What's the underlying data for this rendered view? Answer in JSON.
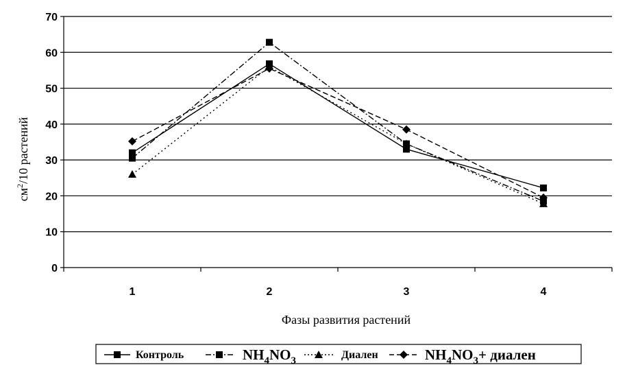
{
  "chart_data": {
    "type": "line",
    "x": [
      "1",
      "2",
      "3",
      "4"
    ],
    "xlabel": "Фазы развития растений",
    "ylabel": "см²/10 растений",
    "ylim": [
      0,
      70
    ],
    "yticks": [
      "0",
      "10",
      "20",
      "30",
      "40",
      "50",
      "60",
      "70"
    ],
    "grid": true,
    "legend_position": "bottom",
    "series": [
      {
        "name": "Контроль",
        "values": [
          32.0,
          56.8,
          33.0,
          22.2
        ],
        "marker": "square",
        "dash": "solid",
        "color": "#000000"
      },
      {
        "name": "NH4NO3",
        "values": [
          30.5,
          62.8,
          34.5,
          18.5
        ],
        "marker": "square",
        "dash": "dashdot",
        "color": "#000000"
      },
      {
        "name": "Диален",
        "values": [
          26.0,
          56.0,
          34.5,
          17.8
        ],
        "marker": "triangle",
        "dash": "dotted",
        "color": "#000000"
      },
      {
        "name": "NH4NO3+ диален",
        "values": [
          35.2,
          55.5,
          38.5,
          19.5
        ],
        "marker": "diamond",
        "dash": "dashed",
        "color": "#000000"
      }
    ],
    "legend_labels": {
      "s0": "Контроль",
      "s1_main": "NH",
      "s1_sub1": "4",
      "s1_mid": "NO",
      "s1_sub2": "3",
      "s2": "Диален",
      "s3_main": "NH",
      "s3_sub1": "4",
      "s3_mid": "NO",
      "s3_sub2": "3",
      "s3_tail": "+ диален"
    },
    "ylabel_parts": {
      "unit": "см",
      "exp": "2",
      "rest": "/10 растений"
    }
  }
}
